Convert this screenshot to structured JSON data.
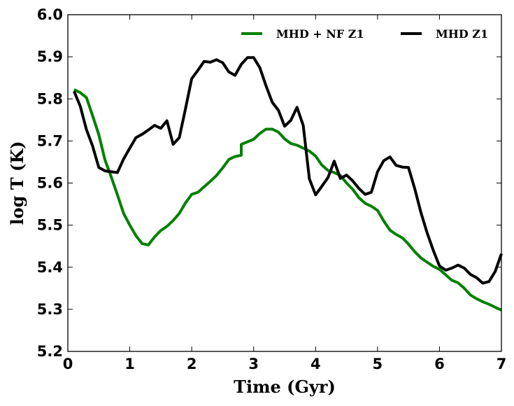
{
  "chart_data": {
    "type": "line",
    "title": "",
    "xlabel": "Time (Gyr)",
    "ylabel": "log T (K)",
    "xlim": [
      0,
      7
    ],
    "ylim": [
      5.2,
      6.0
    ],
    "xticks": [
      "0",
      "1",
      "2",
      "3",
      "4",
      "5",
      "6",
      "7"
    ],
    "yticks": [
      "5.2",
      "5.3",
      "5.4",
      "5.5",
      "5.6",
      "5.7",
      "5.8",
      "5.9",
      "6.0"
    ],
    "grid": false,
    "legend_position": "top-right",
    "series": [
      {
        "name": "MHD + NF Z1",
        "color": "#008000",
        "x": [
          0.1,
          0.2,
          0.3,
          0.4,
          0.5,
          0.6,
          0.7,
          0.8,
          0.9,
          1.0,
          1.1,
          1.2,
          1.3,
          1.4,
          1.5,
          1.6,
          1.7,
          1.8,
          1.9,
          2.0,
          2.1,
          2.2,
          2.3,
          2.4,
          2.5,
          2.6,
          2.7,
          2.8,
          2.8,
          2.9,
          3.0,
          3.1,
          3.2,
          3.3,
          3.4,
          3.5,
          3.6,
          3.7,
          3.8,
          3.9,
          4.0,
          4.1,
          4.2,
          4.3,
          4.4,
          4.5,
          4.6,
          4.7,
          4.8,
          4.9,
          5.0,
          5.1,
          5.2,
          5.3,
          5.4,
          5.5,
          5.6,
          5.7,
          5.8,
          5.9,
          6.0,
          6.1,
          6.2,
          6.3,
          6.4,
          6.5,
          6.6,
          6.7,
          6.8,
          6.9,
          7.0
        ],
        "y": [
          5.822,
          5.815,
          5.803,
          5.76,
          5.715,
          5.655,
          5.615,
          5.572,
          5.528,
          5.5,
          5.475,
          5.456,
          5.453,
          5.472,
          5.487,
          5.497,
          5.511,
          5.528,
          5.553,
          5.573,
          5.578,
          5.591,
          5.604,
          5.618,
          5.636,
          5.656,
          5.663,
          5.666,
          5.692,
          5.698,
          5.704,
          5.718,
          5.728,
          5.728,
          5.721,
          5.705,
          5.694,
          5.69,
          5.683,
          5.676,
          5.664,
          5.643,
          5.63,
          5.625,
          5.618,
          5.6,
          5.585,
          5.565,
          5.552,
          5.545,
          5.535,
          5.51,
          5.488,
          5.478,
          5.47,
          5.455,
          5.437,
          5.422,
          5.412,
          5.402,
          5.395,
          5.382,
          5.369,
          5.363,
          5.35,
          5.334,
          5.325,
          5.318,
          5.312,
          5.305,
          5.298
        ]
      },
      {
        "name": "MHD Z1",
        "color": "#000000",
        "x": [
          0.1,
          0.2,
          0.3,
          0.4,
          0.5,
          0.6,
          0.7,
          0.8,
          0.9,
          1.0,
          1.1,
          1.2,
          1.3,
          1.4,
          1.5,
          1.6,
          1.7,
          1.8,
          1.9,
          2.0,
          2.1,
          2.2,
          2.3,
          2.4,
          2.5,
          2.6,
          2.7,
          2.8,
          2.9,
          3.0,
          3.1,
          3.2,
          3.3,
          3.4,
          3.5,
          3.6,
          3.7,
          3.8,
          3.9,
          4.0,
          4.1,
          4.2,
          4.3,
          4.4,
          4.5,
          4.6,
          4.7,
          4.8,
          4.9,
          5.0,
          5.1,
          5.2,
          5.3,
          5.4,
          5.5,
          5.6,
          5.7,
          5.8,
          5.9,
          6.0,
          6.1,
          6.2,
          6.3,
          6.4,
          6.5,
          6.6,
          6.7,
          6.8,
          6.9,
          7.0
        ],
        "y": [
          5.818,
          5.783,
          5.727,
          5.688,
          5.637,
          5.629,
          5.627,
          5.625,
          5.657,
          5.683,
          5.708,
          5.716,
          5.726,
          5.737,
          5.73,
          5.748,
          5.692,
          5.708,
          5.777,
          5.848,
          5.868,
          5.889,
          5.887,
          5.893,
          5.886,
          5.864,
          5.856,
          5.882,
          5.898,
          5.898,
          5.874,
          5.831,
          5.792,
          5.773,
          5.735,
          5.749,
          5.78,
          5.737,
          5.61,
          5.572,
          5.592,
          5.613,
          5.652,
          5.611,
          5.619,
          5.605,
          5.587,
          5.573,
          5.578,
          5.627,
          5.653,
          5.662,
          5.642,
          5.638,
          5.637,
          5.587,
          5.53,
          5.482,
          5.44,
          5.403,
          5.393,
          5.398,
          5.405,
          5.398,
          5.383,
          5.375,
          5.362,
          5.366,
          5.39,
          5.432
        ]
      }
    ]
  }
}
